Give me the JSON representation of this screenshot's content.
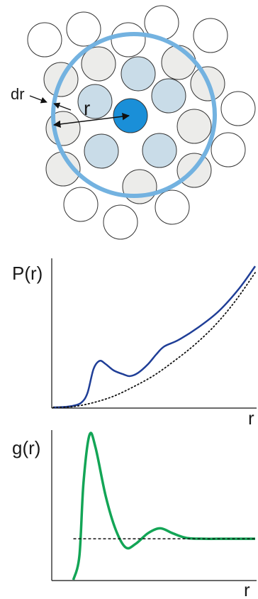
{
  "top_diagram": {
    "label_dr": "dr",
    "label_r": "r",
    "colors": {
      "central": "#1a8fd8",
      "first_shell": "#c9dce8",
      "second_shell": "#ececea",
      "outer": "#ffffff",
      "shell_ring": "#73b2e0"
    }
  },
  "chart_data": [
    {
      "type": "line",
      "ylabel": "P(r)",
      "xlabel": "r",
      "series": [
        {
          "style": "solid",
          "color": "#1f3e97",
          "points": [
            [
              0.0,
              0.0
            ],
            [
              0.05,
              0.002
            ],
            [
              0.1,
              0.01
            ],
            [
              0.14,
              0.03
            ],
            [
              0.17,
              0.09
            ],
            [
              0.2,
              0.24
            ],
            [
              0.23,
              0.29
            ],
            [
              0.26,
              0.27
            ],
            [
              0.3,
              0.23
            ],
            [
              0.35,
              0.205
            ],
            [
              0.38,
              0.195
            ],
            [
              0.42,
              0.215
            ],
            [
              0.47,
              0.27
            ],
            [
              0.51,
              0.33
            ],
            [
              0.55,
              0.38
            ],
            [
              0.62,
              0.42
            ],
            [
              0.72,
              0.5
            ],
            [
              0.82,
              0.6
            ],
            [
              0.92,
              0.74
            ],
            [
              1.0,
              0.88
            ]
          ]
        },
        {
          "style": "dotted",
          "color": "#111111",
          "points": [
            [
              0.0,
              0.0
            ],
            [
              0.1,
              0.005
            ],
            [
              0.2,
              0.03
            ],
            [
              0.3,
              0.07
            ],
            [
              0.4,
              0.13
            ],
            [
              0.5,
              0.2
            ],
            [
              0.6,
              0.29
            ],
            [
              0.7,
              0.39
            ],
            [
              0.8,
              0.51
            ],
            [
              0.9,
              0.66
            ],
            [
              1.0,
              0.84
            ]
          ]
        }
      ]
    },
    {
      "type": "line",
      "ylabel": "g(r)",
      "xlabel": "r",
      "series": [
        {
          "style": "solid",
          "color": "#13a556",
          "points": [
            [
              0.1,
              0.0
            ],
            [
              0.13,
              0.15
            ],
            [
              0.15,
              0.6
            ],
            [
              0.18,
              0.9
            ],
            [
              0.21,
              0.82
            ],
            [
              0.26,
              0.52
            ],
            [
              0.31,
              0.31
            ],
            [
              0.36,
              0.2
            ],
            [
              0.41,
              0.225
            ],
            [
              0.47,
              0.29
            ],
            [
              0.53,
              0.32
            ],
            [
              0.59,
              0.29
            ],
            [
              0.66,
              0.26
            ],
            [
              0.75,
              0.255
            ],
            [
              0.85,
              0.255
            ],
            [
              1.0,
              0.255
            ]
          ]
        },
        {
          "style": "dashed",
          "color": "#111111",
          "points": [
            [
              0.1,
              0.255
            ],
            [
              1.0,
              0.255
            ]
          ]
        }
      ]
    }
  ]
}
